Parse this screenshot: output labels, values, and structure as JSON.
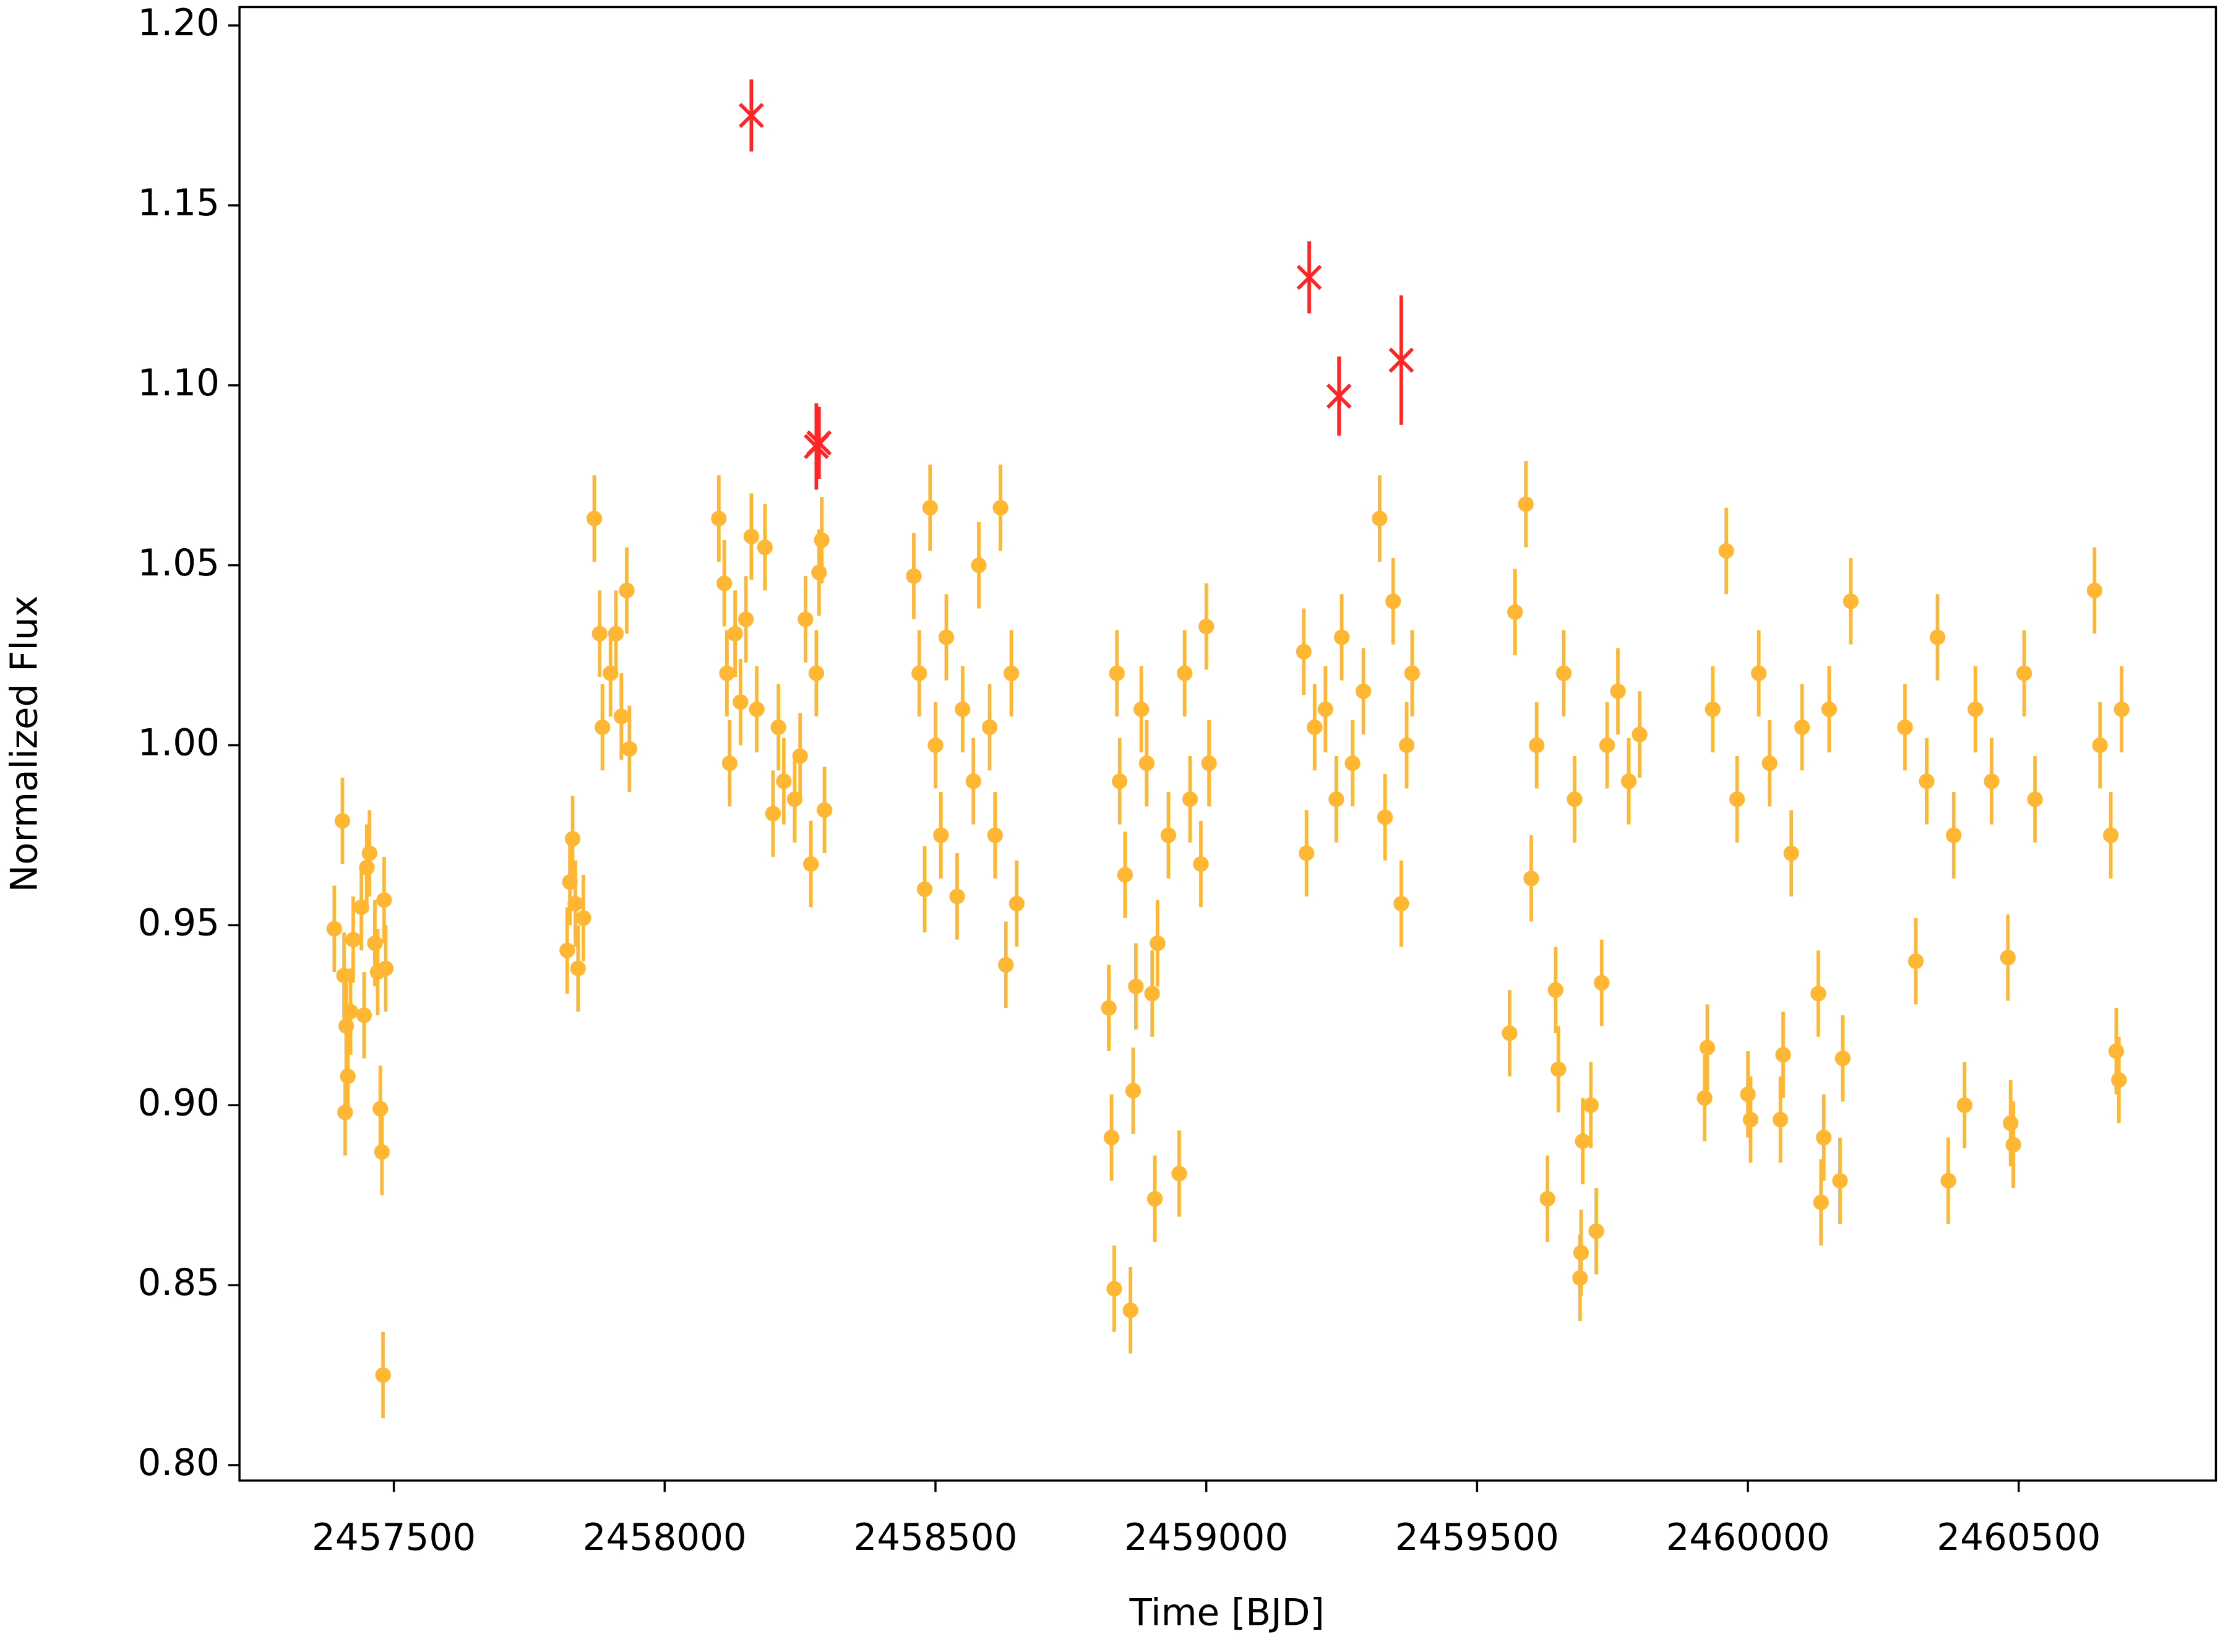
{
  "chart_data": {
    "type": "errorbar_scatter",
    "xlabel": "Time [BJD]",
    "ylabel": "Normalized Flux",
    "xlim": [
      2457215,
      2460864
    ],
    "ylim": [
      0.7957,
      1.2051
    ],
    "xticks": [
      2457500,
      2458000,
      2458500,
      2459000,
      2459500,
      2460000,
      2460500
    ],
    "yticks": [
      {
        "value": 0.8,
        "label": "0.80"
      },
      0.85,
      {
        "value": 0.9,
        "label": "0.90"
      },
      0.95,
      {
        "value": 1.0,
        "label": "1.00"
      },
      1.05,
      {
        "value": 1.1,
        "label": "1.10"
      },
      1.15,
      {
        "value": 1.2,
        "label": "1.20"
      }
    ],
    "series": [
      {
        "color": "#ffa500",
        "marker": "o",
        "yerr": 0.012,
        "x": [
          2457390,
          2457405,
          2457408,
          2457410,
          2457412,
          2457415,
          2457420,
          2457425,
          2457440,
          2457445,
          2457450,
          2457455,
          2457465,
          2457470,
          2457475,
          2457478,
          2457480,
          2457482,
          2457485,
          2457820,
          2457825,
          2457830,
          2457835,
          2457840,
          2457850,
          2457870,
          2457880,
          2457885,
          2457900,
          2457910,
          2457920,
          2457930,
          2457935,
          2458100,
          2458110,
          2458115,
          2458120,
          2458130,
          2458140,
          2458150,
          2458160,
          2458170,
          2458185,
          2458200,
          2458210,
          2458220,
          2458240,
          2458250,
          2458260,
          2458270,
          2458280,
          2458285,
          2458290,
          2458295,
          2458460,
          2458470,
          2458480,
          2458490,
          2458500,
          2458510,
          2458520,
          2458540,
          2458550,
          2458570,
          2458580,
          2458600,
          2458610,
          2458620,
          2458630,
          2458640,
          2458650,
          2458820,
          2458825,
          2458830,
          2458835,
          2458840,
          2458850,
          2458860,
          2458865,
          2458870,
          2458880,
          2458890,
          2458900,
          2458905,
          2458910,
          2458930,
          2458950,
          2458960,
          2458970,
          2458990,
          2459000,
          2459005,
          2459180,
          2459185,
          2459200,
          2459220,
          2459240,
          2459250,
          2459270,
          2459290,
          2459320,
          2459330,
          2459345,
          2459360,
          2459370,
          2459380,
          2459560,
          2459570,
          2459590,
          2459600,
          2459610,
          2459630,
          2459645,
          2459650,
          2459660,
          2459680,
          2459690,
          2459692,
          2459695,
          2459710,
          2459720,
          2459730,
          2459740,
          2459760,
          2459780,
          2459800,
          2459920,
          2459925,
          2459935,
          2459960,
          2459980,
          2460000,
          2460005,
          2460020,
          2460040,
          2460060,
          2460065,
          2460080,
          2460100,
          2460130,
          2460135,
          2460140,
          2460150,
          2460170,
          2460175,
          2460190,
          2460290,
          2460310,
          2460330,
          2460350,
          2460370,
          2460380,
          2460400,
          2460420,
          2460450,
          2460480,
          2460485,
          2460490,
          2460510,
          2460530,
          2460640,
          2460650,
          2460670,
          2460680,
          2460685,
          2460690
        ],
        "values": [
          0.949,
          0.979,
          0.936,
          0.898,
          0.922,
          0.908,
          0.926,
          0.946,
          0.955,
          0.925,
          0.966,
          0.97,
          0.945,
          0.937,
          0.899,
          0.887,
          0.825,
          0.957,
          0.938,
          0.943,
          0.962,
          0.974,
          0.956,
          0.938,
          0.952,
          1.063,
          1.031,
          1.005,
          1.02,
          1.031,
          1.008,
          1.043,
          0.999,
          1.063,
          1.045,
          1.02,
          0.995,
          1.031,
          1.012,
          1.035,
          1.058,
          1.01,
          1.055,
          0.981,
          1.005,
          0.99,
          0.985,
          0.997,
          1.035,
          0.967,
          1.02,
          1.048,
          1.057,
          0.982,
          1.047,
          1.02,
          0.96,
          1.066,
          1.0,
          0.975,
          1.03,
          0.958,
          1.01,
          0.99,
          1.05,
          1.005,
          0.975,
          1.066,
          0.939,
          1.02,
          0.956,
          0.927,
          0.891,
          0.849,
          1.02,
          0.99,
          0.964,
          0.843,
          0.904,
          0.933,
          1.01,
          0.995,
          0.931,
          0.874,
          0.945,
          0.975,
          0.881,
          1.02,
          0.985,
          0.967,
          1.033,
          0.995,
          1.026,
          0.97,
          1.005,
          1.01,
          0.985,
          1.03,
          0.995,
          1.015,
          1.063,
          0.98,
          1.04,
          0.956,
          1.0,
          1.02,
          0.92,
          1.037,
          1.067,
          0.963,
          1.0,
          0.874,
          0.932,
          0.91,
          1.02,
          0.985,
          0.852,
          0.859,
          0.89,
          0.9,
          0.865,
          0.934,
          1.0,
          1.015,
          0.99,
          1.003,
          0.902,
          0.916,
          1.01,
          1.054,
          0.985,
          0.903,
          0.896,
          1.02,
          0.995,
          0.896,
          0.914,
          0.97,
          1.005,
          0.931,
          0.873,
          0.891,
          1.01,
          0.879,
          0.913,
          1.04,
          1.005,
          0.94,
          0.99,
          1.03,
          0.879,
          0.975,
          0.9,
          1.01,
          0.99,
          0.941,
          0.895,
          0.889,
          1.02,
          0.985,
          1.043,
          1.0,
          0.975,
          0.915,
          0.907,
          1.01
        ]
      },
      {
        "color": "#ff0000",
        "marker": "x",
        "yerr": [
          0.01,
          0.012,
          0.01,
          0.01,
          0.011,
          0.018
        ],
        "x": [
          2458160,
          2458280,
          2458285,
          2459190,
          2459245,
          2459360
        ],
        "values": [
          1.175,
          1.083,
          1.084,
          1.13,
          1.097,
          1.107
        ]
      }
    ]
  }
}
